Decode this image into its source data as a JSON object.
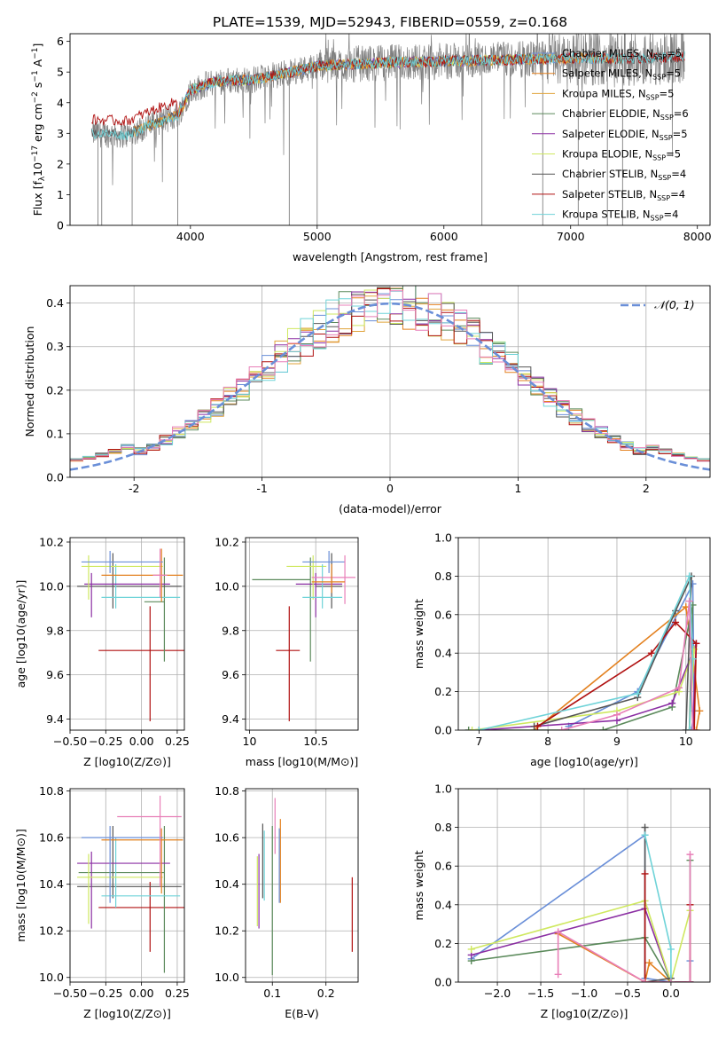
{
  "figure": {
    "title": "PLATE=1539, MJD=52943, FIBERID=0559, z=0.168"
  },
  "colors": {
    "Chabrier MILES": "#6a8fd8",
    "Salpeter MILES": "#e3801e",
    "Kroupa MILES": "#e0a33a",
    "Chabrier ELODIE": "#5b8a5b",
    "Salpeter ELODIE": "#8b2fa3",
    "Kroupa ELODIE": "#cfe860",
    "Chabrier STELIB": "#555555",
    "Salpeter STELIB": "#b01010",
    "Kroupa STELIB": "#6fd3d8",
    "extra_pink": "#e87fb8",
    "data_gray": "#808080",
    "normal_curve": "#6a8fd8"
  },
  "chart_data": [
    {
      "id": "spectrum",
      "type": "line",
      "xlabel": "wavelength [Angstrom, rest frame]",
      "ylabel": "Flux [f_λ 10^-17 erg cm^-2 s^-1 A^-1]",
      "xlim": [
        3050,
        8100
      ],
      "ylim": [
        0,
        6.25
      ],
      "xticks": [
        4000,
        5000,
        6000,
        7000,
        8000
      ],
      "yticks": [
        0,
        1,
        2,
        3,
        4,
        5,
        6
      ],
      "legend_position": "top-right",
      "legend": [
        {
          "name": "Chabrier MILES",
          "label": "Chabrier MILES, N",
          "sub": "SSP",
          "tail": "=5"
        },
        {
          "name": "Salpeter MILES",
          "label": "Salpeter MILES, N",
          "sub": "SSP",
          "tail": "=5"
        },
        {
          "name": "Kroupa MILES",
          "label": "Kroupa MILES, N",
          "sub": "SSP",
          "tail": "=5"
        },
        {
          "name": "Chabrier ELODIE",
          "label": "Chabrier ELODIE, N",
          "sub": "SSP",
          "tail": "=6"
        },
        {
          "name": "Salpeter ELODIE",
          "label": "Salpeter ELODIE, N",
          "sub": "SSP",
          "tail": "=5"
        },
        {
          "name": "Kroupa ELODIE",
          "label": "Kroupa ELODIE, N",
          "sub": "SSP",
          "tail": "=5"
        },
        {
          "name": "Chabrier STELIB",
          "label": "Chabrier STELIB, N",
          "sub": "SSP",
          "tail": "=4"
        },
        {
          "name": "Salpeter STELIB",
          "label": "Salpeter STELIB, N",
          "sub": "SSP",
          "tail": "=4"
        },
        {
          "name": "Kroupa STELIB",
          "label": "Kroupa STELIB, N",
          "sub": "SSP",
          "tail": "=4"
        }
      ],
      "continuum_knots": [
        [
          3200,
          3.0
        ],
        [
          3500,
          2.95
        ],
        [
          3700,
          3.3
        ],
        [
          3900,
          3.6
        ],
        [
          4000,
          4.4
        ],
        [
          4200,
          4.7
        ],
        [
          4500,
          4.75
        ],
        [
          4800,
          5.0
        ],
        [
          5000,
          5.2
        ],
        [
          5500,
          5.3
        ],
        [
          6000,
          5.35
        ],
        [
          6500,
          5.4
        ],
        [
          7000,
          5.45
        ],
        [
          7500,
          5.45
        ],
        [
          7900,
          5.5
        ]
      ],
      "model_ranges": {
        "MILES": [
          3540,
          7410
        ],
        "ELODIE": [
          3900,
          6800
        ],
        "STELIB": [
          3220,
          7900
        ]
      },
      "deep_dips": [
        3270,
        3300,
        3540,
        3900,
        4780,
        5000,
        6300,
        6780,
        7060,
        7290,
        7410
      ]
    },
    {
      "id": "residuals",
      "type": "histogram",
      "xlabel": "(data-model)/error",
      "ylabel": "Normed distribution",
      "xlim": [
        -2.5,
        2.5
      ],
      "ylim": [
        0,
        0.44
      ],
      "xticks": [
        -2,
        -1,
        0,
        1,
        2
      ],
      "yticks": [
        0.0,
        0.1,
        0.2,
        0.3,
        0.4
      ],
      "legend_position": "top-right",
      "curve_label": "𝒩(0, 1)",
      "bins": 50
    },
    {
      "id": "age_vs_Z",
      "type": "errorbar",
      "xlabel": "Z [log10(Z/Z⊙)]",
      "ylabel": "age [log10(age/yr)]",
      "xlim": [
        -0.5,
        0.3
      ],
      "ylim": [
        9.35,
        10.22
      ],
      "xticks": [
        -0.5,
        -0.25,
        0.0,
        0.25
      ],
      "xticklabels": [
        "−0.50",
        "−0.25",
        "0.00",
        "0.25"
      ],
      "yticks": [
        9.4,
        9.6,
        9.8,
        10.0,
        10.2
      ],
      "points": [
        {
          "model": "Salpeter STELIB",
          "x": 0.06,
          "xerr": [
            0.36,
            0.24
          ],
          "y": 9.71,
          "yerr": [
            0.32,
            0.2
          ]
        },
        {
          "model": "Chabrier ELODIE",
          "x": 0.16,
          "xerr": [
            0.14,
            0.0
          ],
          "y": 9.93,
          "yerr": [
            0.27,
            0.2
          ]
        },
        {
          "model": "Chabrier STELIB",
          "x": -0.2,
          "xerr": [
            0.25,
            0.48
          ],
          "y": 10.0,
          "yerr": [
            0.1,
            0.15
          ]
        },
        {
          "model": "Kroupa STELIB",
          "x": -0.18,
          "xerr": [
            0.1,
            0.45
          ],
          "y": 9.95,
          "yerr": [
            0.05,
            0.15
          ]
        },
        {
          "model": "Salpeter ELODIE",
          "x": -0.35,
          "xerr": [
            0.05,
            0.55
          ],
          "y": 10.01,
          "yerr": [
            0.15,
            0.05
          ]
        },
        {
          "model": "Kroupa ELODIE",
          "x": -0.37,
          "xerr": [
            0.05,
            0.52
          ],
          "y": 10.09,
          "yerr": [
            0.15,
            0.05
          ]
        },
        {
          "model": "Salpeter MILES",
          "x": 0.14,
          "xerr": [
            0.42,
            0.15
          ],
          "y": 10.05,
          "yerr": [
            0.12,
            0.12
          ]
        },
        {
          "model": "Chabrier MILES",
          "x": -0.22,
          "xerr": [
            0.2,
            0.37
          ],
          "y": 10.11,
          "yerr": [
            0.05,
            0.05
          ]
        },
        {
          "model": "extra_pink",
          "x": 0.13,
          "xerr": [
            0.05,
            0.05
          ],
          "y": 10.05,
          "yerr": [
            0.1,
            0.12
          ]
        }
      ]
    },
    {
      "id": "age_vs_mass",
      "type": "errorbar",
      "xlabel": "mass [log10(M/M⊙)]",
      "ylabel": "",
      "xlim": [
        9.97,
        10.82
      ],
      "ylim": [
        9.35,
        10.22
      ],
      "xticks": [
        10.0,
        10.5
      ],
      "yticks": [
        9.4,
        9.6,
        9.8,
        10.0,
        10.2
      ],
      "points": [
        {
          "model": "Salpeter STELIB",
          "x": 10.3,
          "xerr": [
            0.1,
            0.08
          ],
          "y": 9.71,
          "yerr": [
            0.32,
            0.2
          ]
        },
        {
          "model": "Chabrier ELODIE",
          "x": 10.46,
          "xerr": [
            0.44,
            0.0
          ],
          "y": 10.03,
          "yerr": [
            0.37,
            0.1
          ]
        },
        {
          "model": "Chabrier STELIB",
          "x": 10.62,
          "xerr": [
            0.12,
            0.08
          ],
          "y": 10.0,
          "yerr": [
            0.1,
            0.15
          ]
        },
        {
          "model": "Salpeter ELODIE",
          "x": 10.5,
          "xerr": [
            0.15,
            0.2
          ],
          "y": 10.01,
          "yerr": [
            0.15,
            0.05
          ]
        },
        {
          "model": "Kroupa ELODIE",
          "x": 10.48,
          "xerr": [
            0.2,
            0.1
          ],
          "y": 10.09,
          "yerr": [
            0.15,
            0.05
          ]
        },
        {
          "model": "Kroupa STELIB",
          "x": 10.55,
          "xerr": [
            0.15,
            0.15
          ],
          "y": 9.95,
          "yerr": [
            0.05,
            0.15
          ]
        },
        {
          "model": "Chabrier MILES",
          "x": 10.6,
          "xerr": [
            0.2,
            0.12
          ],
          "y": 10.11,
          "yerr": [
            0.05,
            0.05
          ]
        },
        {
          "model": "extra_pink",
          "x": 10.72,
          "xerr": [
            0.25,
            0.08
          ],
          "y": 10.04,
          "yerr": [
            0.12,
            0.1
          ]
        },
        {
          "model": "Salpeter MILES",
          "x": 10.62,
          "xerr": [
            0.15,
            0.1
          ],
          "y": 10.02,
          "yerr": [
            0.05,
            0.08
          ]
        }
      ]
    },
    {
      "id": "weight_vs_age",
      "type": "line",
      "xlabel": "age [log10(age/yr)]",
      "ylabel": "mass weight",
      "xlim": [
        6.7,
        10.35
      ],
      "ylim": [
        0,
        1.0
      ],
      "xticks": [
        7,
        8,
        9,
        10
      ],
      "yticks": [
        0.0,
        0.2,
        0.4,
        0.6,
        0.8,
        1.0
      ],
      "series": [
        {
          "model": "Chabrier MILES",
          "x": [
            8.3,
            9.3,
            10.1,
            10.12,
            10.08
          ],
          "y": [
            0.02,
            0.2,
            0.76,
            0.1,
            0.0
          ]
        },
        {
          "model": "Salpeter MILES",
          "x": [
            7.8,
            10.0,
            10.2,
            10.15
          ],
          "y": [
            0.0,
            0.64,
            0.1,
            0.0
          ]
        },
        {
          "model": "Chabrier ELODIE",
          "x": [
            6.85,
            8.8,
            9.8,
            10.1,
            10.05
          ],
          "y": [
            0.0,
            0.0,
            0.12,
            0.65,
            0.0
          ]
        },
        {
          "model": "Salpeter ELODIE",
          "x": [
            7.0,
            9.0,
            9.8,
            10.15,
            10.1
          ],
          "y": [
            0.0,
            0.05,
            0.14,
            0.45,
            0.0
          ]
        },
        {
          "model": "Kroupa ELODIE",
          "x": [
            6.9,
            9.0,
            9.9,
            10.12,
            10.05
          ],
          "y": [
            0.0,
            0.1,
            0.2,
            0.42,
            0.0
          ]
        },
        {
          "model": "Chabrier STELIB",
          "x": [
            7.8,
            9.3,
            9.85,
            10.08,
            10.0
          ],
          "y": [
            0.02,
            0.17,
            0.62,
            0.8,
            0.0
          ]
        },
        {
          "model": "Salpeter STELIB",
          "x": [
            7.85,
            9.5,
            9.85,
            10.15,
            10.12
          ],
          "y": [
            0.02,
            0.4,
            0.56,
            0.45,
            0.0
          ]
        },
        {
          "model": "Kroupa STELIB",
          "x": [
            7.0,
            9.3,
            10.05,
            10.1,
            10.05
          ],
          "y": [
            0.0,
            0.19,
            0.8,
            0.37,
            0.0
          ]
        },
        {
          "model": "extra_pink",
          "x": [
            8.2,
            9.0,
            9.9,
            10.05,
            10.1
          ],
          "y": [
            0.0,
            0.08,
            0.22,
            0.67,
            0.0
          ]
        }
      ]
    },
    {
      "id": "mass_vs_Z",
      "type": "errorbar",
      "xlabel": "Z [log10(Z/Z⊙)]",
      "ylabel": "mass [log10(M/M⊙)]",
      "xlim": [
        -0.5,
        0.3
      ],
      "ylim": [
        9.98,
        10.81
      ],
      "xticks": [
        -0.5,
        -0.25,
        0.0,
        0.25
      ],
      "xticklabels": [
        "−0.50",
        "−0.25",
        "0.00",
        "0.25"
      ],
      "yticks": [
        10.0,
        10.2,
        10.4,
        10.6,
        10.8
      ],
      "points": [
        {
          "model": "Salpeter STELIB",
          "x": 0.06,
          "xerr": [
            0.36,
            0.24
          ],
          "y": 10.3,
          "yerr": [
            0.19,
            0.11
          ]
        },
        {
          "model": "Chabrier ELODIE",
          "x": 0.16,
          "xerr": [
            0.6,
            0.0
          ],
          "y": 10.45,
          "yerr": [
            0.43,
            0.2
          ]
        },
        {
          "model": "Chabrier STELIB",
          "x": -0.2,
          "xerr": [
            0.25,
            0.48
          ],
          "y": 10.39,
          "yerr": [
            0.05,
            0.26
          ]
        },
        {
          "model": "Kroupa STELIB",
          "x": -0.18,
          "xerr": [
            0.1,
            0.45
          ],
          "y": 10.35,
          "yerr": [
            0.05,
            0.25
          ]
        },
        {
          "model": "Salpeter ELODIE",
          "x": -0.35,
          "xerr": [
            0.1,
            0.55
          ],
          "y": 10.49,
          "yerr": [
            0.28,
            0.05
          ]
        },
        {
          "model": "Kroupa ELODIE",
          "x": -0.37,
          "xerr": [
            0.08,
            0.52
          ],
          "y": 10.43,
          "yerr": [
            0.2,
            0.1
          ]
        },
        {
          "model": "Salpeter MILES",
          "x": 0.14,
          "xerr": [
            0.42,
            0.15
          ],
          "y": 10.59,
          "yerr": [
            0.23,
            0.05
          ]
        },
        {
          "model": "Chabrier MILES",
          "x": -0.22,
          "xerr": [
            0.2,
            0.37
          ],
          "y": 10.6,
          "yerr": [
            0.28,
            0.05
          ]
        },
        {
          "model": "extra_pink",
          "x": 0.13,
          "xerr": [
            0.3,
            0.15
          ],
          "y": 10.69,
          "yerr": [
            0.3,
            0.09
          ]
        }
      ]
    },
    {
      "id": "mass_vs_ebv",
      "type": "errorbar",
      "xlabel": "E(B-V)",
      "ylabel": "",
      "xlim": [
        0.05,
        0.26
      ],
      "ylim": [
        9.98,
        10.81
      ],
      "xticks": [
        0.1,
        0.2
      ],
      "yticks": [
        10.0,
        10.2,
        10.4,
        10.6,
        10.8
      ],
      "points": [
        {
          "model": "Salpeter STELIB",
          "x": 0.249,
          "y": 10.27,
          "yerr": [
            0.16,
            0.16
          ]
        },
        {
          "model": "Chabrier ELODIE",
          "x": 0.1,
          "y": 10.33,
          "yerr": [
            0.32,
            0.32
          ]
        },
        {
          "model": "Kroupa STELIB",
          "x": 0.085,
          "y": 10.48,
          "yerr": [
            0.15,
            0.15
          ]
        },
        {
          "model": "Chabrier STELIB",
          "x": 0.082,
          "y": 10.5,
          "yerr": [
            0.16,
            0.16
          ]
        },
        {
          "model": "Salpeter ELODIE",
          "x": 0.075,
          "y": 10.37,
          "yerr": [
            0.16,
            0.16
          ]
        },
        {
          "model": "Kroupa ELODIE",
          "x": 0.072,
          "y": 10.37,
          "yerr": [
            0.15,
            0.15
          ]
        },
        {
          "model": "Salpeter MILES",
          "x": 0.115,
          "y": 10.5,
          "yerr": [
            0.18,
            0.18
          ]
        },
        {
          "model": "Chabrier MILES",
          "x": 0.113,
          "y": 10.48,
          "yerr": [
            0.16,
            0.16
          ]
        },
        {
          "model": "extra_pink",
          "x": 0.105,
          "y": 10.65,
          "yerr": [
            0.12,
            0.12
          ]
        }
      ]
    },
    {
      "id": "weight_vs_Z",
      "type": "line",
      "xlabel": "Z [log10(Z/Z⊙)]",
      "ylabel": "mass weight",
      "xlim": [
        -2.45,
        0.45
      ],
      "ylim": [
        0,
        1.0
      ],
      "xticks": [
        -2.0,
        -1.5,
        -1.0,
        -0.5,
        0.0
      ],
      "xticklabels": [
        "−2.0",
        "−1.5",
        "−1.0",
        "−0.5",
        "0.0"
      ],
      "yticks": [
        0.0,
        0.2,
        0.4,
        0.6,
        0.8,
        1.0
      ],
      "series": [
        {
          "model": "Chabrier MILES",
          "x": [
            -2.3,
            -0.3,
            -0.3,
            0.0,
            0.22,
            0.22
          ],
          "y": [
            0.12,
            0.76,
            0.02,
            0.0,
            0.0,
            0.11
          ]
        },
        {
          "model": "Salpeter MILES",
          "x": [
            -1.3,
            -0.3,
            -0.25,
            0.0
          ],
          "y": [
            0.25,
            0.0,
            0.1,
            0.0
          ]
        },
        {
          "model": "Chabrier ELODIE",
          "x": [
            -2.3,
            -0.3,
            0.0,
            0.22,
            0.22
          ],
          "y": [
            0.11,
            0.23,
            0.0,
            0.0,
            0.63
          ]
        },
        {
          "model": "Salpeter ELODIE",
          "x": [
            -2.3,
            -0.3,
            0.0,
            0.22
          ],
          "y": [
            0.14,
            0.38,
            0.0,
            0.0
          ]
        },
        {
          "model": "Kroupa ELODIE",
          "x": [
            -2.3,
            -0.3,
            0.0,
            0.22
          ],
          "y": [
            0.17,
            0.42,
            0.0,
            0.37
          ]
        },
        {
          "model": "Chabrier STELIB",
          "x": [
            -0.3,
            -0.3,
            0.0
          ],
          "y": [
            0.8,
            0.0,
            0.02
          ]
        },
        {
          "model": "Salpeter STELIB",
          "x": [
            -0.3,
            -0.3,
            0.22,
            0.22
          ],
          "y": [
            0.56,
            0.0,
            0.0,
            0.4
          ]
        },
        {
          "model": "Kroupa STELIB",
          "x": [
            -0.3,
            0.0,
            0.0
          ],
          "y": [
            0.76,
            0.17,
            0.0
          ]
        },
        {
          "model": "extra_pink",
          "x": [
            -1.3,
            -1.3,
            -0.3,
            0.0,
            0.22,
            0.22
          ],
          "y": [
            0.04,
            0.26,
            0.0,
            0.0,
            0.0,
            0.66
          ]
        }
      ]
    }
  ]
}
